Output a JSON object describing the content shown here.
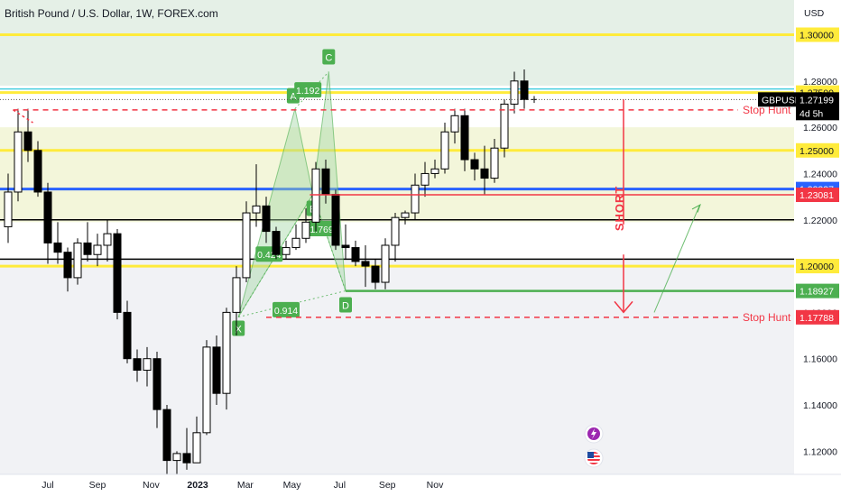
{
  "header": {
    "symbol_title": "British Pound / U.S. Dollar, 1W, FOREX.com",
    "currency": "USD"
  },
  "colors": {
    "bull": "#ffffff",
    "bear": "#000000",
    "yellow_level": "#ffeb3b",
    "blue_level": "#2962ff",
    "red_dashed": "#f23645",
    "green": "#4caf50",
    "pattern_fill": "#a5d6a7",
    "zone_top": "#cfe3d4",
    "zone_mid": "#f1f4d3"
  },
  "chart_data": {
    "type": "candlestick",
    "timeframe": "1W",
    "y_axis": {
      "min": 1.11,
      "max": 1.315,
      "tick_labels": [
        "1.30000",
        "1.28000",
        "1.26000",
        "1.24000",
        "1.22000",
        "1.20000",
        "1.18000",
        "1.16000",
        "1.14000",
        "1.12000"
      ],
      "tick_values": [
        1.3,
        1.28,
        1.26,
        1.24,
        1.22,
        1.2,
        1.18,
        1.16,
        1.14,
        1.12
      ]
    },
    "x_axis": {
      "tick_labels": [
        "Jul",
        "Sep",
        "Nov",
        "2023",
        "Mar",
        "May",
        "Jul",
        "Sep",
        "Nov"
      ],
      "tick_indices": [
        4,
        9,
        14.4,
        19.1,
        23.9,
        28.6,
        33.4,
        38.2,
        43
      ]
    },
    "candles": [
      [
        1.217,
        1.24,
        1.21,
        1.232
      ],
      [
        1.232,
        1.268,
        1.228,
        1.258
      ],
      [
        1.258,
        1.268,
        1.245,
        1.25
      ],
      [
        1.25,
        1.254,
        1.23,
        1.232
      ],
      [
        1.232,
        1.236,
        1.201,
        1.21
      ],
      [
        1.21,
        1.219,
        1.201,
        1.206
      ],
      [
        1.206,
        1.208,
        1.189,
        1.195
      ],
      [
        1.195,
        1.212,
        1.192,
        1.21
      ],
      [
        1.21,
        1.219,
        1.202,
        1.205
      ],
      [
        1.205,
        1.214,
        1.2,
        1.209
      ],
      [
        1.209,
        1.22,
        1.202,
        1.214
      ],
      [
        1.214,
        1.216,
        1.177,
        1.18
      ],
      [
        1.18,
        1.185,
        1.158,
        1.16
      ],
      [
        1.16,
        1.164,
        1.15,
        1.155
      ],
      [
        1.155,
        1.165,
        1.148,
        1.16
      ],
      [
        1.16,
        1.163,
        1.13,
        1.138
      ],
      [
        1.138,
        1.14,
        1.11,
        1.116
      ],
      [
        1.116,
        1.12,
        1.11,
        1.119
      ],
      [
        1.119,
        1.13,
        1.112,
        1.115
      ],
      [
        1.115,
        1.135,
        1.115,
        1.128
      ],
      [
        1.128,
        1.168,
        1.127,
        1.165
      ],
      [
        1.165,
        1.17,
        1.14,
        1.145
      ],
      [
        1.145,
        1.182,
        1.138,
        1.18
      ],
      [
        1.18,
        1.2,
        1.17,
        1.195
      ],
      [
        1.195,
        1.228,
        1.193,
        1.223
      ],
      [
        1.223,
        1.244,
        1.217,
        1.226
      ],
      [
        1.226,
        1.23,
        1.21,
        1.215
      ],
      [
        1.215,
        1.217,
        1.203,
        1.205
      ],
      [
        1.205,
        1.211,
        1.203,
        1.208
      ],
      [
        1.208,
        1.218,
        1.207,
        1.212
      ],
      [
        1.212,
        1.225,
        1.21,
        1.219
      ],
      [
        1.219,
        1.245,
        1.215,
        1.242
      ],
      [
        1.242,
        1.246,
        1.227,
        1.231
      ],
      [
        1.231,
        1.233,
        1.207,
        1.209
      ],
      [
        1.209,
        1.218,
        1.203,
        1.208
      ],
      [
        1.208,
        1.211,
        1.2,
        1.202
      ],
      [
        1.202,
        1.209,
        1.191,
        1.2
      ],
      [
        1.2,
        1.203,
        1.19,
        1.193
      ],
      [
        1.193,
        1.212,
        1.19,
        1.209
      ],
      [
        1.209,
        1.223,
        1.202,
        1.221
      ],
      [
        1.221,
        1.224,
        1.218,
        1.223
      ],
      [
        1.223,
        1.24,
        1.22,
        1.235
      ],
      [
        1.235,
        1.245,
        1.23,
        1.24
      ],
      [
        1.24,
        1.246,
        1.238,
        1.242
      ],
      [
        1.242,
        1.262,
        1.24,
        1.258
      ],
      [
        1.258,
        1.268,
        1.253,
        1.265
      ],
      [
        1.265,
        1.268,
        1.241,
        1.246
      ],
      [
        1.246,
        1.249,
        1.237,
        1.242
      ],
      [
        1.242,
        1.252,
        1.231,
        1.238
      ],
      [
        1.238,
        1.255,
        1.236,
        1.251
      ],
      [
        1.251,
        1.272,
        1.247,
        1.27
      ],
      [
        1.27,
        1.284,
        1.266,
        1.28
      ],
      [
        1.28,
        1.285,
        1.268,
        1.272
      ]
    ],
    "horizontal_levels": [
      {
        "price": 1.3,
        "style": "yellow"
      },
      {
        "price": 1.275,
        "style": "yellow"
      },
      {
        "price": 1.25,
        "style": "yellow"
      },
      {
        "price": 1.2333,
        "style": "blue"
      },
      {
        "price": 1.22,
        "style": "black"
      },
      {
        "price": 1.203,
        "style": "black"
      },
      {
        "price": 1.2,
        "style": "yellow"
      }
    ],
    "harmonic_pattern": {
      "points": [
        {
          "label": "X",
          "index": 23.2,
          "price": 1.178
        },
        {
          "label": "A",
          "index": 28.9,
          "price": 1.268
        },
        {
          "label": "B",
          "index": 30.7,
          "price": 1.231
        },
        {
          "label": "C",
          "index": 32.3,
          "price": 1.284
        },
        {
          "label": "D",
          "index": 34.0,
          "price": 1.1893
        }
      ],
      "ratios": [
        {
          "text": "1.192",
          "index": 30.2,
          "price": 1.276
        },
        {
          "text": "0.424",
          "index": 26.3,
          "price": 1.205
        },
        {
          "text": "1.769",
          "index": 31.6,
          "price": 1.216
        },
        {
          "text": "0.914",
          "index": 28.0,
          "price": 1.181
        }
      ]
    },
    "annotations": {
      "short_label": "SHORT",
      "stop_hunt_label": "Stop Hunt",
      "stop_hunt_upper": 1.2675,
      "stop_hunt_lower": 1.17788,
      "red_line_price": 1.23081,
      "green_target_price": 1.18927
    },
    "price_labels": [
      {
        "text": "1.30000",
        "price": 1.3,
        "kind": "yellow"
      },
      {
        "text": "1.27500",
        "price": 1.275,
        "kind": "yellow"
      },
      {
        "text": "GBPUSD",
        "price": 1.272,
        "kind": "symbol"
      },
      {
        "text": "1.27199",
        "price": 1.272,
        "kind": "dark"
      },
      {
        "text": "4d 5h",
        "price": 1.2672,
        "kind": "dark_small"
      },
      {
        "text": "1.25000",
        "price": 1.25,
        "kind": "yellow"
      },
      {
        "text": "1.23337",
        "price": 1.2333,
        "kind": "blue"
      },
      {
        "text": "1.23081",
        "price": 1.23081,
        "kind": "red"
      },
      {
        "text": "1.20000",
        "price": 1.2,
        "kind": "yellow"
      },
      {
        "text": "1.18927",
        "price": 1.18927,
        "kind": "green"
      },
      {
        "text": "1.17788",
        "price": 1.17788,
        "kind": "red"
      }
    ]
  }
}
